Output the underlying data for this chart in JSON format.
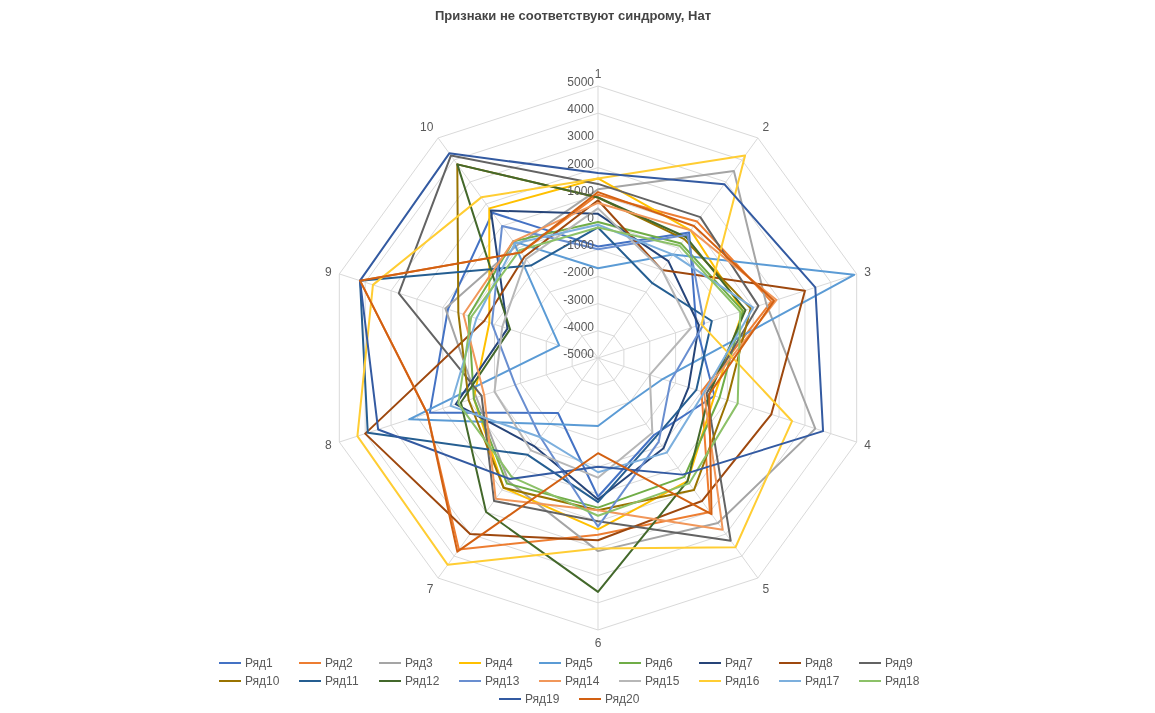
{
  "chart_data": {
    "type": "radar",
    "title": "Признаки не соответствуют синдрому, Нат",
    "categories": [
      "1",
      "2",
      "3",
      "4",
      "5",
      "6",
      "7",
      "8",
      "9",
      "10"
    ],
    "ylim": [
      -5000,
      5000
    ],
    "yticks": [
      -5000,
      -4000,
      -3000,
      -2000,
      -1000,
      0,
      1000,
      2000,
      3000,
      4000,
      5000
    ],
    "grid": true,
    "legend": "bottom",
    "marker": "none",
    "series": [
      {
        "name": "Ряд1",
        "color": "#4472c4",
        "values": [
          -900,
          700,
          -1200,
          -500,
          -1500,
          100,
          -2500,
          1500,
          800,
          1600
        ]
      },
      {
        "name": "Ряд2",
        "color": "#ed7d31",
        "values": [
          1000,
          1200,
          1700,
          -1000,
          2000,
          1500,
          3700,
          1600,
          4200,
          -200
        ]
      },
      {
        "name": "Ряд3",
        "color": "#a5a5a5",
        "values": [
          1200,
          3500,
          1500,
          3400,
          2500,
          2100,
          600,
          -300,
          900,
          100
        ]
      },
      {
        "name": "Ряд4",
        "color": "#ffc000",
        "values": [
          1600,
          800,
          600,
          -500,
          600,
          1300,
          900,
          -200,
          -800,
          1800
        ]
      },
      {
        "name": "Ряд5",
        "color": "#5b9bd5",
        "values": [
          -1700,
          -300,
          4900,
          -2500,
          -3000,
          -2500,
          -2000,
          2300,
          -3500,
          300
        ]
      },
      {
        "name": "Ряд6",
        "color": "#70ad47",
        "values": [
          0,
          200,
          600,
          -300,
          400,
          500,
          700,
          -200,
          0,
          300
        ]
      },
      {
        "name": "Ряд7",
        "color": "#264478",
        "values": [
          300,
          -600,
          -1100,
          -1500,
          -900,
          200,
          -1000,
          500,
          -1500,
          1700
        ]
      },
      {
        "name": "Ряд8",
        "color": "#9e480e",
        "values": [
          800,
          -1000,
          3000,
          1700,
          1500,
          1700,
          3000,
          4000,
          -600,
          -400
        ]
      },
      {
        "name": "Ряд9",
        "color": "#636363",
        "values": [
          1400,
          1400,
          1200,
          -800,
          3300,
          1000,
          1500,
          -500,
          2700,
          4200
        ]
      },
      {
        "name": "Ряд10",
        "color": "#997300",
        "values": [
          900,
          400,
          900,
          0,
          1000,
          600,
          900,
          0,
          400,
          3800
        ]
      },
      {
        "name": "Ряд11",
        "color": "#255e91",
        "values": [
          -200,
          -1600,
          -600,
          -1200,
          -1400,
          300,
          -600,
          3900,
          4200,
          -800
        ]
      },
      {
        "name": "Ряд12",
        "color": "#43682b",
        "values": [
          900,
          500,
          700,
          -700,
          600,
          3600,
          2000,
          300,
          -1600,
          3800
        ]
      },
      {
        "name": "Ряд13",
        "color": "#698ed0",
        "values": [
          -1000,
          600,
          -900,
          -2200,
          -1200,
          1200,
          -1400,
          -1800,
          -900,
          1000
        ]
      },
      {
        "name": "Ряд14",
        "color": "#f1975a",
        "values": [
          700,
          800,
          1900,
          -900,
          2800,
          600,
          1400,
          -600,
          200,
          300
        ]
      },
      {
        "name": "Ряд15",
        "color": "#b7b7b7",
        "values": [
          500,
          -1000,
          -1400,
          -3000,
          -1600,
          -600,
          -800,
          -1000,
          -1300,
          -500
        ]
      },
      {
        "name": "Ряд16",
        "color": "#ffcd33",
        "values": [
          1600,
          4200,
          -1000,
          2500,
          3600,
          2000,
          4400,
          4300,
          3700,
          2300
        ]
      },
      {
        "name": "Ряд17",
        "color": "#7cafdd",
        "values": [
          -100,
          -300,
          1000,
          -900,
          -700,
          -800,
          -1400,
          700,
          -300,
          200
        ]
      },
      {
        "name": "Ряд18",
        "color": "#8cc168",
        "values": [
          -200,
          100,
          500,
          400,
          700,
          800,
          400,
          400,
          -100,
          -100
        ]
      },
      {
        "name": "Ряд19",
        "color": "#335aa1",
        "values": [
          1800,
          2900,
          3400,
          3700,
          300,
          -1000,
          500,
          3500,
          4200,
          4300
        ]
      },
      {
        "name": "Ряд20",
        "color": "#d26012",
        "values": [
          1100,
          1000,
          1800,
          -700,
          2100,
          -1500,
          3800,
          1600,
          4200,
          -200
        ]
      }
    ]
  }
}
